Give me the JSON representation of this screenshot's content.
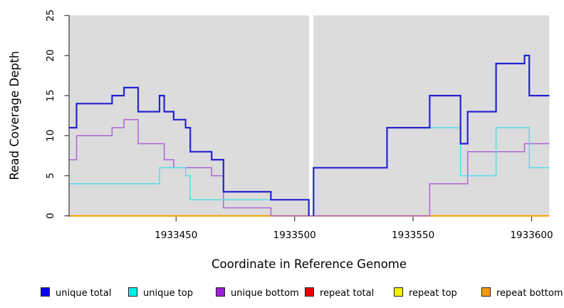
{
  "chart_data": {
    "type": "line",
    "subtype": "step-post-coverage-plot",
    "title": "",
    "xlabel": "Coordinate in Reference Genome",
    "ylabel": "Read Coverage Depth",
    "x_range": [
      1933405,
      1933607.5
    ],
    "y_range": [
      0,
      25
    ],
    "grid": false,
    "plot_bg": "#dcdcdc",
    "axis_color": "#3a3a3a",
    "x_ticks": [
      {
        "value": 1933450,
        "label": "1933450"
      },
      {
        "value": 1933500,
        "label": "1933500"
      },
      {
        "value": 1933550,
        "label": "1933550"
      },
      {
        "value": 1933600,
        "label": "1933600"
      }
    ],
    "y_ticks": [
      {
        "value": 0,
        "label": "0"
      },
      {
        "value": 5,
        "label": "5"
      },
      {
        "value": 10,
        "label": "10"
      },
      {
        "value": 15,
        "label": "15"
      },
      {
        "value": 20,
        "label": "20"
      },
      {
        "value": 25,
        "label": "25"
      }
    ],
    "coverage_gap": {
      "x_start": 1933506.1,
      "x_end": 1933507.9
    },
    "series": [
      {
        "name": "repeat total",
        "color": "#DD2222",
        "width": 1.2,
        "segments": [
          [
            [
              1933405,
              0
            ],
            [
              1933607.5,
              0
            ]
          ]
        ]
      },
      {
        "name": "repeat top",
        "color": "#EDED00",
        "width": 1.2,
        "segments": [
          [
            [
              1933405,
              0
            ],
            [
              1933607.5,
              0
            ]
          ]
        ]
      },
      {
        "name": "repeat bottom",
        "color": "#FFA000",
        "width": 2,
        "segments": [
          [
            [
              1933405,
              0
            ],
            [
              1933607.5,
              0
            ]
          ]
        ]
      },
      {
        "name": "unique bottom",
        "color": "#AE63D8",
        "width": 1.5,
        "segments": [
          [
            [
              1933405,
              7
            ],
            [
              1933408,
              10
            ],
            [
              1933423,
              11
            ],
            [
              1933428,
              12
            ],
            [
              1933434,
              9
            ],
            [
              1933445,
              7
            ],
            [
              1933449,
              6
            ],
            [
              1933465,
              5
            ],
            [
              1933470,
              1
            ],
            [
              1933490,
              0
            ],
            [
              1933557,
              4
            ],
            [
              1933573,
              8
            ],
            [
              1933597,
              9
            ],
            [
              1933607.5,
              9
            ]
          ]
        ]
      },
      {
        "name": "unique top",
        "color": "#4FE0EA",
        "width": 1.5,
        "segments": [
          [
            [
              1933405,
              4
            ],
            [
              1933443,
              6
            ],
            [
              1933454,
              5
            ],
            [
              1933456,
              2
            ],
            [
              1933506,
              0
            ]
          ],
          [
            [
              1933508,
              0
            ],
            [
              1933508,
              6
            ],
            [
              1933539,
              11
            ],
            [
              1933570,
              5
            ],
            [
              1933585,
              11
            ],
            [
              1933599,
              6
            ],
            [
              1933607.5,
              6
            ]
          ]
        ]
      },
      {
        "name": "unique total",
        "color": "#2323D3",
        "width": 2.2,
        "segments": [
          [
            [
              1933405,
              11
            ],
            [
              1933408,
              14
            ],
            [
              1933423,
              15
            ],
            [
              1933428,
              16
            ],
            [
              1933434,
              13
            ],
            [
              1933443,
              15
            ],
            [
              1933445,
              13
            ],
            [
              1933449,
              12
            ],
            [
              1933454,
              11
            ],
            [
              1933456,
              8
            ],
            [
              1933465,
              7
            ],
            [
              1933470,
              3
            ],
            [
              1933490,
              2
            ],
            [
              1933506,
              0
            ]
          ],
          [
            [
              1933508,
              0
            ],
            [
              1933508,
              6
            ],
            [
              1933539,
              11
            ],
            [
              1933557,
              15
            ],
            [
              1933570,
              9
            ],
            [
              1933573,
              13
            ],
            [
              1933585,
              19
            ],
            [
              1933597,
              20
            ],
            [
              1933599,
              15
            ],
            [
              1933607.5,
              15
            ]
          ]
        ]
      }
    ]
  },
  "legend": {
    "items": [
      {
        "label": "unique total",
        "color": "#0000EE"
      },
      {
        "label": "unique top",
        "color": "#00EEEE"
      },
      {
        "label": "unique bottom",
        "color": "#9B20D9"
      },
      {
        "label": "repeat total",
        "color": "#EE0000"
      },
      {
        "label": "repeat top",
        "color": "#F0F000"
      },
      {
        "label": "repeat bottom",
        "color": "#F59B00"
      }
    ]
  }
}
